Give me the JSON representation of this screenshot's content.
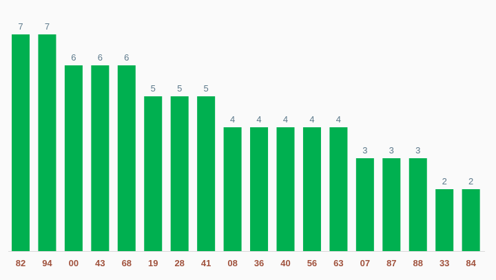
{
  "chart_data": {
    "type": "bar",
    "categories": [
      "82",
      "94",
      "00",
      "43",
      "68",
      "19",
      "28",
      "41",
      "08",
      "36",
      "40",
      "56",
      "63",
      "07",
      "87",
      "88",
      "33",
      "84"
    ],
    "values": [
      7,
      7,
      6,
      6,
      6,
      5,
      5,
      5,
      4,
      4,
      4,
      4,
      4,
      3,
      3,
      3,
      2,
      2
    ],
    "ylim": [
      0,
      7
    ],
    "grid": false,
    "data_labels": true
  },
  "colors": {
    "bar": "#00b050",
    "value_label": "#5d7a8c",
    "category_label": "#a0523d",
    "baseline": "#d9d9d9",
    "background": "#fafafa"
  }
}
